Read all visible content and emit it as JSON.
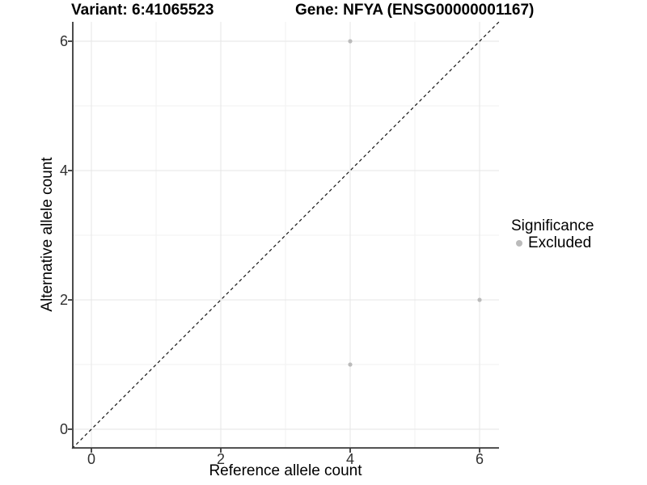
{
  "header": {
    "variant_title": "Variant: 6:41065523",
    "gene_title": "Gene: NFYA (ENSG00000001167)"
  },
  "chart_data": {
    "type": "scatter",
    "title_left": "Variant: 6:41065523",
    "title_right": "Gene: NFYA (ENSG00000001167)",
    "xlabel": "Reference allele count",
    "ylabel": "Alternative allele count",
    "xlim": [
      -0.3,
      6.3
    ],
    "ylim": [
      -0.3,
      6.3
    ],
    "x_ticks": [
      0,
      2,
      4,
      6
    ],
    "y_ticks": [
      0,
      2,
      4,
      6
    ],
    "minor_x": [
      1,
      3,
      5
    ],
    "minor_y": [
      1,
      3,
      5
    ],
    "grid": true,
    "points": [
      {
        "x": 4,
        "y": 6,
        "significance": "Excluded"
      },
      {
        "x": 6,
        "y": 2,
        "significance": "Excluded"
      },
      {
        "x": 4,
        "y": 1,
        "significance": "Excluded"
      }
    ],
    "reference_line": {
      "type": "identity",
      "style": "dashed",
      "from": [
        -0.3,
        -0.3
      ],
      "to": [
        6.3,
        6.3
      ]
    },
    "legend": {
      "position": "right",
      "title": "Significance",
      "entries": [
        {
          "label": "Excluded",
          "color": "#bbbbbb"
        }
      ]
    },
    "colors": {
      "point": "#bbbbbb",
      "grid_major": "#e6e6e6",
      "grid_minor": "#f2f2f2",
      "axis": "#383838",
      "tick_text": "#303030",
      "dashed_line": "#141414",
      "background": "#ffffff"
    }
  }
}
